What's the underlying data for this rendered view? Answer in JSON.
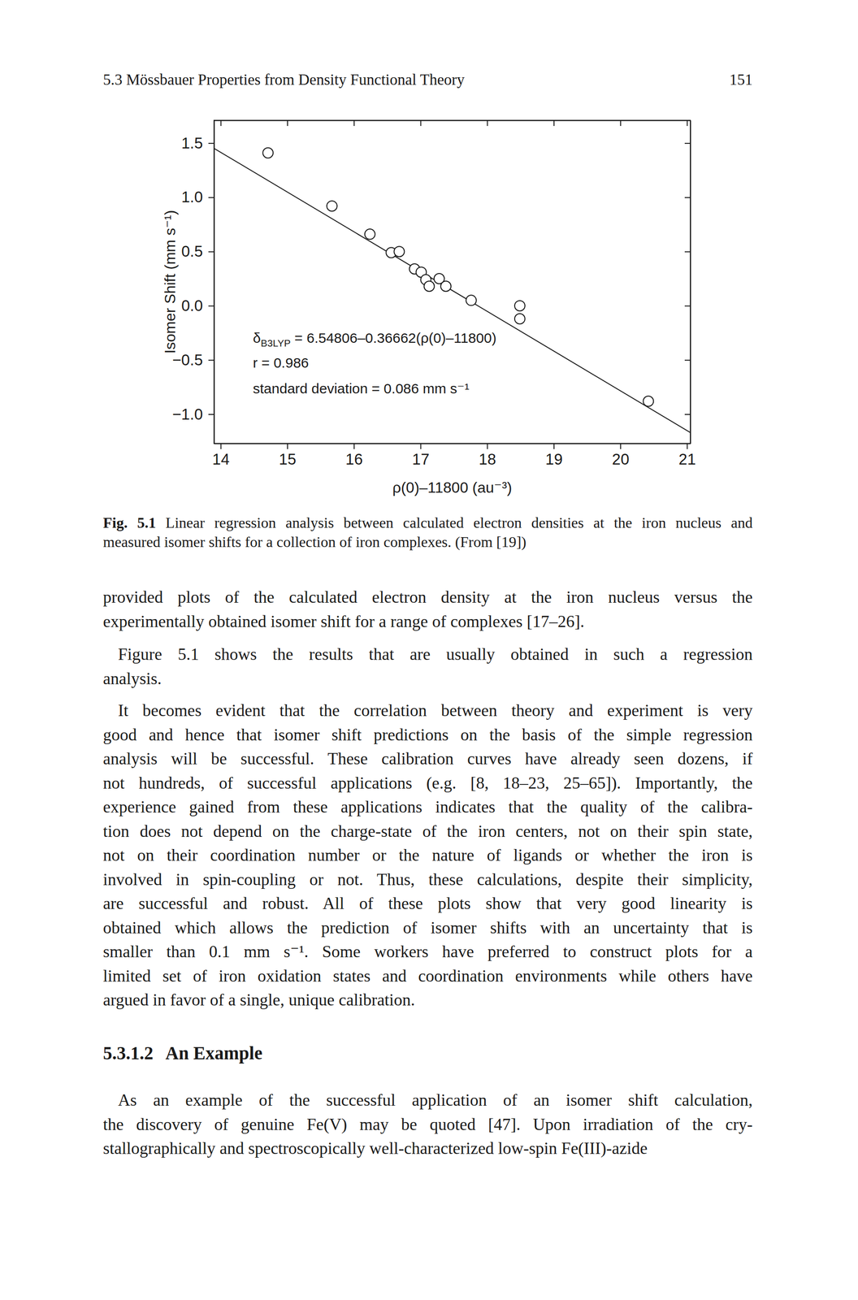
{
  "header": {
    "running_title": "5.3 Mössbauer Properties from Density Functional Theory",
    "page_number": "151"
  },
  "chart_data": {
    "type": "scatter",
    "x_label": "ρ(0)–11800 (au⁻³)",
    "y_label": "Isomer Shift (mm s⁻¹)",
    "x": [
      14.71,
      15.67,
      16.24,
      16.56,
      16.68,
      16.91,
      17.01,
      17.08,
      17.13,
      17.28,
      17.38,
      17.76,
      18.49,
      18.49,
      20.42
    ],
    "values": [
      1.41,
      0.92,
      0.66,
      0.49,
      0.5,
      0.34,
      0.31,
      0.24,
      0.18,
      0.25,
      0.18,
      0.05,
      0.0,
      -0.12,
      -0.88
    ],
    "marker": "open-circle",
    "color": "#1a1a1a",
    "fit_line": {
      "x": [
        13.9,
        21.05
      ],
      "values": [
        1.452,
        -1.169
      ]
    },
    "annotations": [
      {
        "symbol": "δ",
        "subscript": "B3LYP",
        "text": " = 6.54806–0.36662(ρ(0)–11800)"
      },
      {
        "text": "r = 0.986"
      },
      {
        "text": "standard deviation = 0.086 mm s⁻¹"
      }
    ],
    "xlim": [
      13.9,
      21.05
    ],
    "xticks": [
      14,
      15,
      16,
      17,
      18,
      19,
      20,
      21
    ],
    "ylim": [
      -1.27,
      1.71
    ],
    "yticks": [
      {
        "value": -1.0,
        "label": "−1.0"
      },
      {
        "value": -0.5,
        "label": "−0.5"
      },
      {
        "value": 0,
        "label": "0.0"
      },
      0.5,
      {
        "value": 1.0,
        "label": "1.0"
      },
      1.5
    ],
    "grid": false
  },
  "caption": {
    "label": "Fig. 5.1",
    "lines": [
      "Linear regression analysis between calculated electron densities at the iron nucleus and",
      "measured isomer shifts for a collection of iron complexes. (From [19])"
    ]
  },
  "paragraphs": [
    {
      "lines": [
        "provided plots of the calculated electron density at the iron nucleus versus the",
        "experimentally obtained isomer shift for a range of complexes [17–26]."
      ]
    },
    {
      "lines": [
        "Figure 5.1 shows the results that are usually obtained in such a regression",
        "analysis."
      ]
    },
    {
      "lines": [
        "It becomes evident that the correlation between theory and experiment is very",
        "good and hence that isomer shift predictions on the basis of the simple regression",
        "analysis will be successful. These calibration curves have already seen dozens, if",
        "not hundreds, of successful applications (e.g. [8, 18–23, 25–65]). Importantly, the",
        "experience gained from these applications indicates that the quality of the calibra-",
        "tion does not depend on the charge-state of the iron centers, not on their spin state,",
        "not on their coordination number or the nature of ligands or whether the iron is",
        "involved in spin-coupling or not. Thus, these calculations, despite their simplicity,",
        "are successful and robust. All of these plots show that very good linearity is",
        "obtained which allows the prediction of isomer shifts with an uncertainty that is",
        "smaller than 0.1 mm s⁻¹. Some workers have preferred to construct plots for a",
        "limited set of iron oxidation states and coordination environments while others have",
        "argued in favor of a single, unique calibration."
      ]
    },
    {
      "lines": [
        "As an example of the successful application of an isomer shift calculation,",
        "the discovery of genuine Fe(V) may be quoted [47]. Upon irradiation of the cry-",
        "stallographically and spectroscopically well-characterized low-spin Fe(III)-azide"
      ]
    }
  ],
  "section": {
    "number": "5.3.1.2",
    "title": "An Example"
  }
}
